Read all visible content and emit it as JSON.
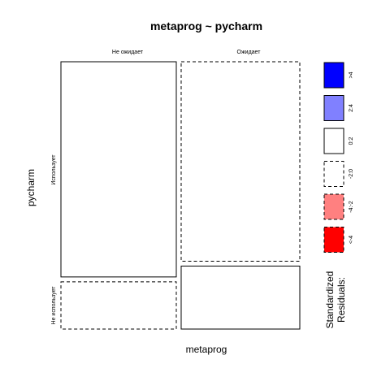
{
  "chart_data": {
    "type": "mosaic",
    "title": "metaprog ~ pycharm",
    "xlabel": "metaprog",
    "ylabel": "pycharm",
    "x_categories": [
      "Не ожидает",
      "Ожидает"
    ],
    "y_categories": [
      "Использует",
      "Не использует"
    ],
    "x_proportions": [
      0.493,
      0.507
    ],
    "cells": [
      {
        "x": "Не ожидает",
        "y": "Использует",
        "share_within_x": 0.82,
        "residual_class": "0:2"
      },
      {
        "x": "Не ожидает",
        "y": "Не использует",
        "share_within_x": 0.18,
        "residual_class": "-2:0"
      },
      {
        "x": "Ожидает",
        "y": "Использует",
        "share_within_x": 0.76,
        "residual_class": "-2:0"
      },
      {
        "x": "Ожидает",
        "y": "Не использует",
        "share_within_x": 0.24,
        "residual_class": "0:2"
      }
    ],
    "legend": {
      "title_line1": "Standardized",
      "title_line2": "Residuals:",
      "placement": "right",
      "items": [
        {
          "label": ">4",
          "fill": "#0000ff",
          "dashed": false
        },
        {
          "label": "2:4",
          "fill": "#8080ff",
          "dashed": false
        },
        {
          "label": "0:2",
          "fill": "#ffffff",
          "dashed": false
        },
        {
          "label": "-2:0",
          "fill": "#ffffff",
          "dashed": true
        },
        {
          "label": "-4:-2",
          "fill": "#ff8080",
          "dashed": true
        },
        {
          "label": "<-4",
          "fill": "#ff0000",
          "dashed": true
        }
      ]
    }
  }
}
